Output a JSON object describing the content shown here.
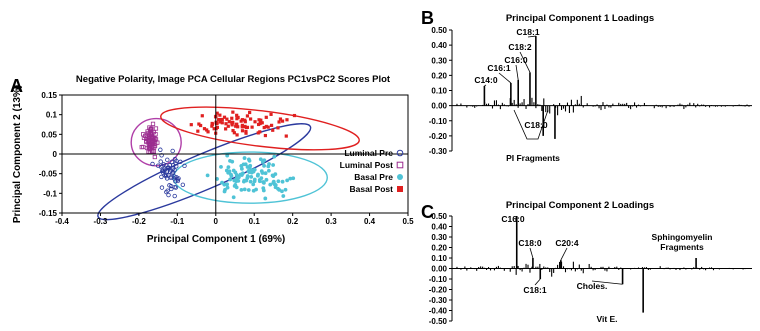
{
  "panels": {
    "a": "A",
    "b": "B",
    "c": "C"
  },
  "chart_data": [
    {
      "type": "scatter",
      "title": "Negative Polarity, Image PCA Cellular Regions PC1vsPC2 Scores Plot",
      "xlabel": "Principal Component 1 (69%)",
      "ylabel": "Principal Component 2 (13%)",
      "xlim": [
        -0.4,
        0.5
      ],
      "ylim": [
        -0.15,
        0.15
      ],
      "xticks": [
        "-0.4",
        "-0.3",
        "-0.2",
        "-0.1",
        "0",
        "0.1",
        "0.2",
        "0.3",
        "0.4",
        "0.5"
      ],
      "yticks": [
        "-0.15",
        "-0.1",
        "-0.05",
        "0",
        "0.05",
        "0.1",
        "0.15"
      ],
      "legend_position": "right",
      "series": [
        {
          "name": "Luminal Pre",
          "color": "#2b3a9e",
          "marker": "open-circle",
          "center": [
            -0.12,
            -0.05
          ],
          "spread": [
            0.035,
            0.055
          ],
          "count": 60
        },
        {
          "name": "Luminal Post",
          "color": "#9b2c8f",
          "marker": "open-square",
          "center": [
            -0.17,
            0.035
          ],
          "spread": [
            0.018,
            0.035
          ],
          "count": 70
        },
        {
          "name": "Basal Pre",
          "color": "#4fc3d6",
          "marker": "filled-circle",
          "center": [
            0.1,
            -0.06
          ],
          "spread": [
            0.1,
            0.045
          ],
          "count": 110
        },
        {
          "name": "Basal Post",
          "color": "#e02020",
          "marker": "filled-square",
          "center": [
            0.05,
            0.075
          ],
          "spread": [
            0.13,
            0.03
          ],
          "count": 90
        }
      ],
      "ellipses": [
        {
          "series": "Luminal Pre",
          "color": "#2b3a9e",
          "center": [
            -0.03,
            -0.045
          ],
          "rx": 0.3,
          "ry": 0.045,
          "angle_deg": 23
        },
        {
          "series": "Luminal Post",
          "color": "#b03fa8",
          "center": [
            -0.155,
            0.03
          ],
          "rx": 0.065,
          "ry": 0.06,
          "angle_deg": 0
        },
        {
          "series": "Basal Pre",
          "color": "#4fc3d6",
          "center": [
            0.09,
            -0.06
          ],
          "rx": 0.2,
          "ry": 0.065,
          "angle_deg": 0
        },
        {
          "series": "Basal Post",
          "color": "#e02020",
          "center": [
            0.115,
            0.065
          ],
          "rx": 0.26,
          "ry": 0.045,
          "angle_deg": -7
        }
      ]
    },
    {
      "type": "bar",
      "title": "Principal Component 1 Loadings",
      "ylim": [
        -0.3,
        0.5
      ],
      "yticks": [
        "0.50",
        "0.40",
        "0.30",
        "0.20",
        "0.10",
        "0.00",
        "-0.10",
        "-0.20",
        "-0.30"
      ],
      "peaks": [
        {
          "label": "C14:0",
          "x": 0.1,
          "value": 0.13
        },
        {
          "label": "C16:1",
          "x": 0.19,
          "value": 0.15
        },
        {
          "label": "C16:0",
          "x": 0.215,
          "value": 0.17
        },
        {
          "label": "C18:2",
          "x": 0.255,
          "value": 0.22
        },
        {
          "label": "C18:1",
          "x": 0.275,
          "value": 0.46
        },
        {
          "label": "C18:0",
          "x": 0.3,
          "value": -0.2
        },
        {
          "label": "PI Fragments",
          "x": 0.34,
          "value": -0.22
        }
      ]
    },
    {
      "type": "bar",
      "title": "Principal Component 2 Loadings",
      "ylim": [
        -0.5,
        0.5
      ],
      "yticks": [
        "0.50",
        "0.40",
        "0.30",
        "0.20",
        "0.10",
        "0.00",
        "-0.10",
        "-0.20",
        "-0.30",
        "-0.40",
        "-0.50"
      ],
      "peaks": [
        {
          "label": "C16:0",
          "x": 0.21,
          "value": 0.5
        },
        {
          "label": "C18:0",
          "x": 0.265,
          "value": 0.1
        },
        {
          "label": "C20:4",
          "x": 0.36,
          "value": 0.08
        },
        {
          "label": "C18:1",
          "x": 0.29,
          "value": -0.1
        },
        {
          "label": "Choles.",
          "x": 0.57,
          "value": -0.15
        },
        {
          "label": "Vit E.",
          "x": 0.64,
          "value": -0.42
        },
        {
          "label": "Sphingomyelin\nFragments",
          "x": 0.82,
          "value": 0.1
        }
      ]
    }
  ]
}
